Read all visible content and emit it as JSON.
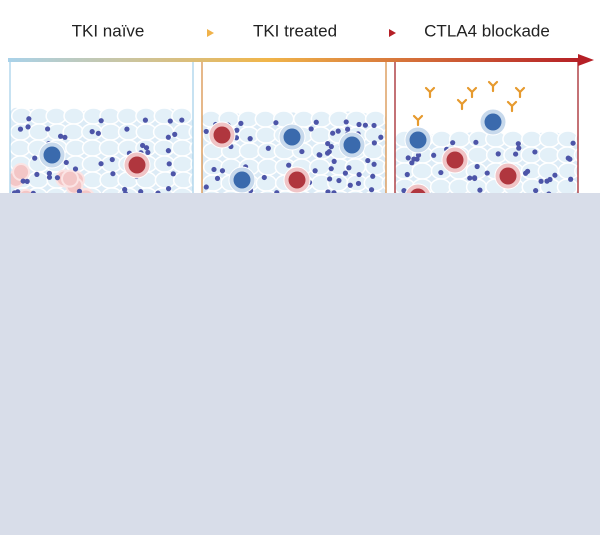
{
  "header": {
    "stages": [
      "TKI naïve",
      "TKI treated",
      "CTLA4 blockade"
    ]
  }
}
